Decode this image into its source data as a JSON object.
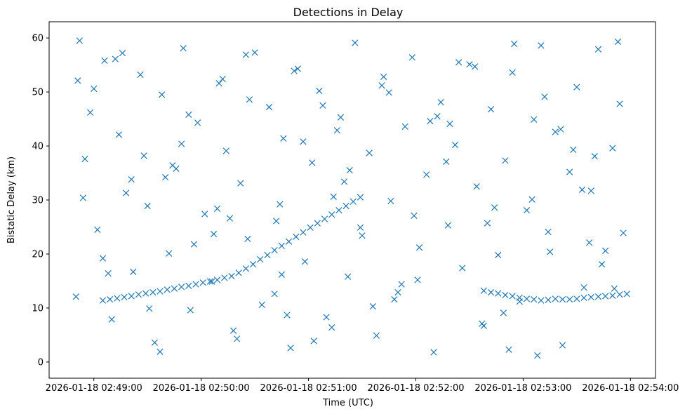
{
  "chart_data": {
    "type": "scatter",
    "title": "Detections in Delay",
    "xlabel": "Time (UTC)",
    "ylabel": "Bistatic Delay (km)",
    "marker": "x",
    "color": "#1f77b4",
    "xlim": [
      "2026-01-18 02:48:35",
      "2026-01-18 02:54:14"
    ],
    "ylim": [
      -3,
      63
    ],
    "xticks": [
      "2026-01-18 02:49:00",
      "2026-01-18 02:50:00",
      "2026-01-18 02:51:00",
      "2026-01-18 02:52:00",
      "2026-01-18 02:53:00",
      "2026-01-18 02:54:00"
    ],
    "yticks": [
      0,
      10,
      20,
      30,
      40,
      50,
      60
    ],
    "grid": false,
    "series": [
      {
        "x": [
          "2026-01-18 02:48:50",
          "2026-01-18 02:48:52",
          "2026-01-18 02:48:55",
          "2026-01-18 02:48:58",
          "2026-01-18 02:49:02",
          "2026-01-18 02:49:06",
          "2026-01-18 02:49:10",
          "2026-01-18 02:49:14",
          "2026-01-18 02:49:18",
          "2026-01-18 02:49:22",
          "2026-01-18 02:49:26",
          "2026-01-18 02:49:30",
          "2026-01-18 02:49:34",
          "2026-01-18 02:49:38",
          "2026-01-18 02:49:42",
          "2026-01-18 02:49:46",
          "2026-01-18 02:49:50",
          "2026-01-18 02:49:54",
          "2026-01-18 02:49:58",
          "2026-01-18 02:50:02",
          "2026-01-18 02:50:06",
          "2026-01-18 02:50:10",
          "2026-01-18 02:50:14",
          "2026-01-18 02:50:18",
          "2026-01-18 02:50:22",
          "2026-01-18 02:50:26",
          "2026-01-18 02:50:30",
          "2026-01-18 02:50:34",
          "2026-01-18 02:50:38",
          "2026-01-18 02:50:42",
          "2026-01-18 02:50:46",
          "2026-01-18 02:50:50",
          "2026-01-18 02:50:54",
          "2026-01-18 02:50:58",
          "2026-01-18 02:51:02",
          "2026-01-18 02:51:06",
          "2026-01-18 02:51:10",
          "2026-01-18 02:51:14",
          "2026-01-18 02:51:18",
          "2026-01-18 02:51:22",
          "2026-01-18 02:51:26",
          "2026-01-18 02:51:30",
          "2026-01-18 02:51:34",
          "2026-01-18 02:51:38",
          "2026-01-18 02:51:42",
          "2026-01-18 02:51:46",
          "2026-01-18 02:51:50",
          "2026-01-18 02:51:54",
          "2026-01-18 02:51:58",
          "2026-01-18 02:52:02",
          "2026-01-18 02:52:06",
          "2026-01-18 02:52:10",
          "2026-01-18 02:52:14",
          "2026-01-18 02:52:18",
          "2026-01-18 02:52:22",
          "2026-01-18 02:52:26",
          "2026-01-18 02:52:30",
          "2026-01-18 02:52:34",
          "2026-01-18 02:52:38",
          "2026-01-18 02:52:42",
          "2026-01-18 02:52:46",
          "2026-01-18 02:52:50",
          "2026-01-18 02:52:54",
          "2026-01-18 02:52:58",
          "2026-01-18 02:53:02",
          "2026-01-18 02:53:06",
          "2026-01-18 02:53:10",
          "2026-01-18 02:53:14",
          "2026-01-18 02:53:18",
          "2026-01-18 02:53:22",
          "2026-01-18 02:53:26",
          "2026-01-18 02:53:30",
          "2026-01-18 02:53:34",
          "2026-01-18 02:53:38",
          "2026-01-18 02:53:42",
          "2026-01-18 02:53:46",
          "2026-01-18 02:53:50",
          "2026-01-18 02:53:54",
          "2026-01-18 02:48:51",
          "2026-01-18 02:49:05",
          "2026-01-18 02:49:21",
          "2026-01-18 02:49:37",
          "2026-01-18 02:49:53",
          "2026-01-18 02:50:09",
          "2026-01-18 02:50:25",
          "2026-01-18 02:50:41",
          "2026-01-18 02:50:57",
          "2026-01-18 02:51:13",
          "2026-01-18 02:51:29",
          "2026-01-18 02:51:45",
          "2026-01-18 02:52:01",
          "2026-01-18 02:52:17",
          "2026-01-18 02:52:33",
          "2026-01-18 02:52:49",
          "2026-01-18 02:53:05",
          "2026-01-18 02:53:21",
          "2026-01-18 02:53:37",
          "2026-01-18 02:53:53",
          "2026-01-18 02:48:54",
          "2026-01-18 02:49:12",
          "2026-01-18 02:49:31",
          "2026-01-18 02:49:49",
          "2026-01-18 02:50:07",
          "2026-01-18 02:50:27",
          "2026-01-18 02:50:45",
          "2026-01-18 02:51:03",
          "2026-01-18 02:51:23",
          "2026-01-18 02:51:41",
          "2026-01-18 02:51:59",
          "2026-01-18 02:52:19",
          "2026-01-18 02:52:37",
          "2026-01-18 02:52:55",
          "2026-01-18 02:53:15",
          "2026-01-18 02:53:33",
          "2026-01-18 02:53:51",
          "2026-01-18 02:49:00",
          "2026-01-18 02:49:28",
          "2026-01-18 02:49:56",
          "2026-01-18 02:50:20",
          "2026-01-18 02:50:52",
          "2026-01-18 02:51:20",
          "2026-01-18 02:51:48",
          "2026-01-18 02:52:12",
          "2026-01-18 02:52:44",
          "2026-01-18 02:53:12",
          "2026-01-18 02:53:44",
          "2026-01-18 02:49:16",
          "2026-01-18 02:49:44",
          "2026-01-18 02:50:16",
          "2026-01-18 02:50:48",
          "2026-01-18 02:51:16",
          "2026-01-18 02:51:52",
          "2026-01-18 02:52:24",
          "2026-01-18 02:52:52",
          "2026-01-18 02:53:28",
          "2026-01-18 02:53:56",
          "2026-01-18 02:49:08",
          "2026-01-18 02:49:40",
          "2026-01-18 02:50:12",
          "2026-01-18 02:50:44",
          "2026-01-18 02:51:08",
          "2026-01-18 02:51:36",
          "2026-01-18 02:52:08",
          "2026-01-18 02:52:40",
          "2026-01-18 02:53:08",
          "2026-01-18 02:53:40"
        ],
        "y": [
          12.1,
          59.5,
          37.6,
          46.2,
          24.5,
          55.8,
          7.9,
          42.1,
          31.3,
          16.7,
          53.2,
          28.9,
          3.6,
          49.5,
          20.1,
          35.8,
          58.1,
          9.6,
          44.3,
          27.4,
          14.9,
          51.6,
          39.1,
          5.8,
          33.1,
          22.8,
          57.3,
          10.6,
          47.2,
          26.1,
          41.4,
          2.6,
          54.3,
          18.6,
          36.9,
          50.2,
          8.3,
          30.6,
          45.3,
          15.8,
          59.1,
          23.4,
          38.7,
          4.9,
          52.8,
          29.8,
          12.9,
          43.6,
          56.4,
          21.2,
          34.7,
          1.8,
          48.1,
          25.3,
          40.2,
          17.4,
          55.1,
          32.5,
          6.7,
          46.8,
          19.8,
          37.3,
          53.6,
          11.2,
          28.1,
          44.9,
          58.6,
          24.1,
          42.6,
          3.1,
          35.2,
          50.9,
          13.8,
          31.7,
          57.9,
          20.6,
          39.6,
          47.8,
          52.1,
          19.2,
          33.8,
          1.9,
          45.8,
          28.4,
          56.9,
          12.6,
          40.8,
          6.4,
          24.9,
          49.9,
          15.2,
          37.1,
          54.7,
          9.1,
          30.1,
          43.1,
          22.1,
          59.3,
          30.4,
          56.1,
          9.9,
          40.4,
          23.7,
          48.6,
          16.2,
          3.9,
          35.5,
          51.2,
          27.1,
          44.1,
          7.1,
          58.9,
          20.4,
          31.9,
          13.6,
          50.6,
          38.2,
          21.8,
          4.3,
          53.9,
          33.4,
          11.6,
          45.5,
          28.6,
          49.1,
          18.1,
          57.2,
          36.4,
          26.6,
          8.7,
          42.9,
          14.4,
          55.5,
          2.3,
          39.3,
          23.9,
          16.4,
          34.2,
          52.4,
          29.2,
          47.5,
          10.3,
          44.6,
          25.7,
          1.2,
          38.1
        ]
      },
      {
        "x": [
          "2026-01-18 02:49:05",
          "2026-01-18 02:49:09",
          "2026-01-18 02:49:13",
          "2026-01-18 02:49:17",
          "2026-01-18 02:49:21",
          "2026-01-18 02:49:25",
          "2026-01-18 02:49:29",
          "2026-01-18 02:49:33",
          "2026-01-18 02:49:37",
          "2026-01-18 02:49:41",
          "2026-01-18 02:49:45",
          "2026-01-18 02:49:49",
          "2026-01-18 02:49:53",
          "2026-01-18 02:49:57",
          "2026-01-18 02:50:01",
          "2026-01-18 02:50:05",
          "2026-01-18 02:50:09",
          "2026-01-18 02:50:13",
          "2026-01-18 02:50:17",
          "2026-01-18 02:50:21",
          "2026-01-18 02:50:25",
          "2026-01-18 02:50:29",
          "2026-01-18 02:50:33",
          "2026-01-18 02:50:37",
          "2026-01-18 02:50:41",
          "2026-01-18 02:50:45",
          "2026-01-18 02:50:49",
          "2026-01-18 02:50:53",
          "2026-01-18 02:50:57",
          "2026-01-18 02:51:01",
          "2026-01-18 02:51:05",
          "2026-01-18 02:51:09",
          "2026-01-18 02:51:13",
          "2026-01-18 02:51:17",
          "2026-01-18 02:51:21",
          "2026-01-18 02:51:25",
          "2026-01-18 02:51:29"
        ],
        "y": [
          11.4,
          11.6,
          11.8,
          12.0,
          12.2,
          12.5,
          12.7,
          12.9,
          13.1,
          13.4,
          13.6,
          13.9,
          14.1,
          14.4,
          14.7,
          14.9,
          15.2,
          15.6,
          15.9,
          16.5,
          17.3,
          18.1,
          19.0,
          19.8,
          20.7,
          21.5,
          22.3,
          23.2,
          24.0,
          24.9,
          25.7,
          26.5,
          27.3,
          28.1,
          28.9,
          29.7,
          30.5
        ]
      },
      {
        "x": [
          "2026-01-18 02:52:38",
          "2026-01-18 02:52:42",
          "2026-01-18 02:52:46",
          "2026-01-18 02:52:50",
          "2026-01-18 02:52:54",
          "2026-01-18 02:52:58",
          "2026-01-18 02:53:02",
          "2026-01-18 02:53:06",
          "2026-01-18 02:53:10",
          "2026-01-18 02:53:14",
          "2026-01-18 02:53:18",
          "2026-01-18 02:53:22",
          "2026-01-18 02:53:26",
          "2026-01-18 02:53:30",
          "2026-01-18 02:53:34",
          "2026-01-18 02:53:38",
          "2026-01-18 02:53:42",
          "2026-01-18 02:53:46",
          "2026-01-18 02:53:50",
          "2026-01-18 02:53:54",
          "2026-01-18 02:53:58"
        ],
        "y": [
          13.2,
          12.9,
          12.7,
          12.4,
          12.2,
          11.9,
          11.7,
          11.6,
          11.4,
          11.5,
          11.7,
          11.6,
          11.6,
          11.7,
          11.9,
          12.0,
          12.1,
          12.2,
          12.3,
          12.5,
          12.6
        ]
      }
    ]
  }
}
